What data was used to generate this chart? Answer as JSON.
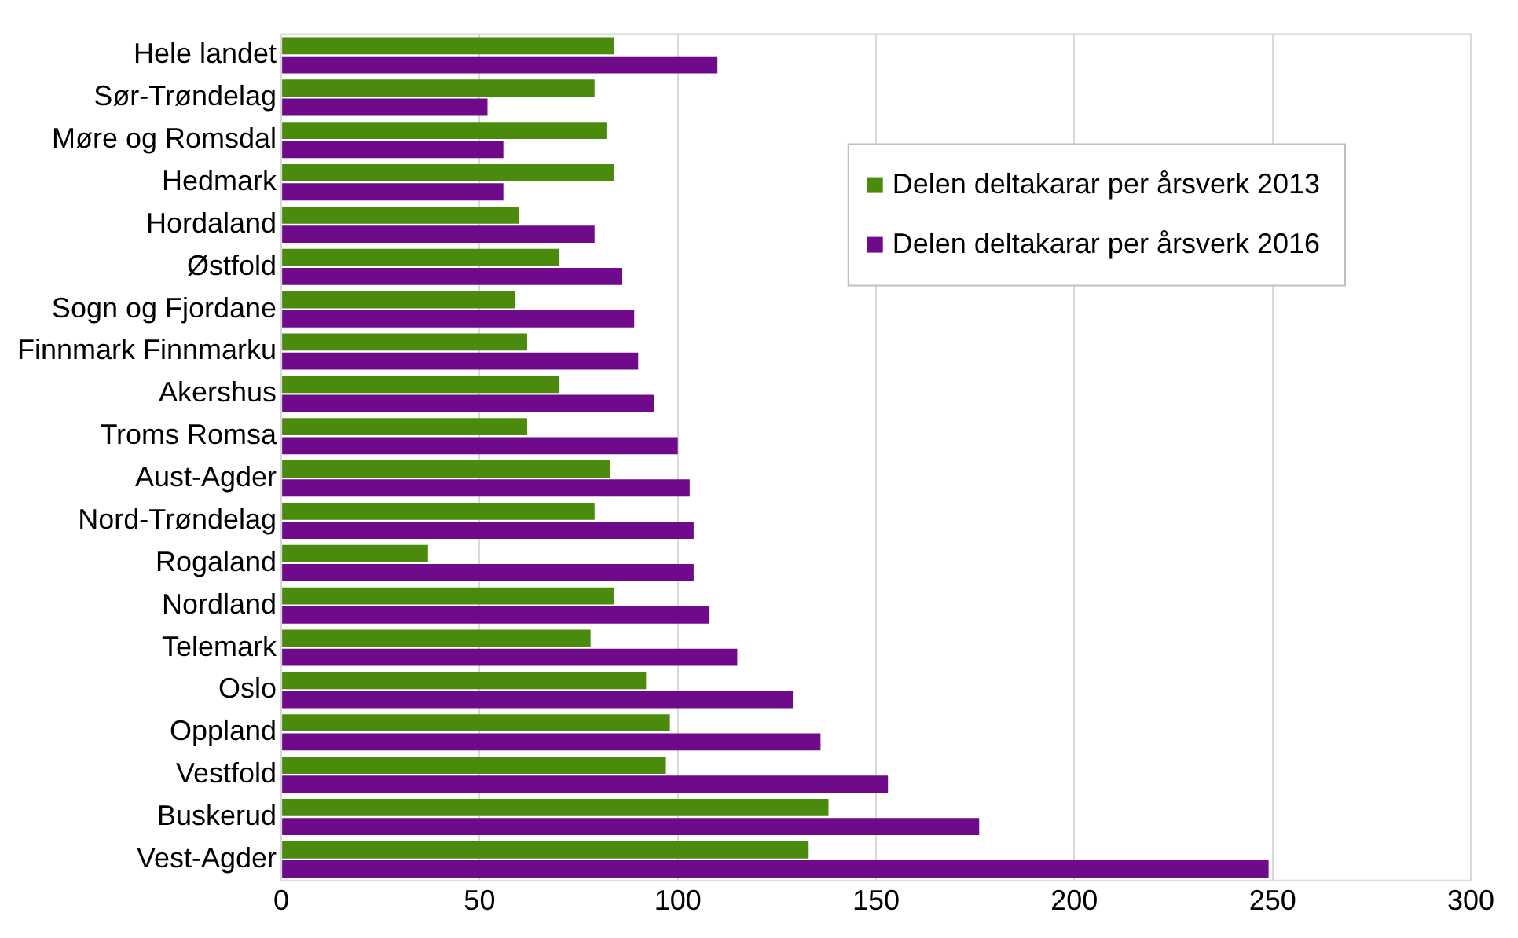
{
  "chart_data": {
    "type": "bar",
    "orientation": "horizontal",
    "categories": [
      "Hele landet",
      "Sør-Trøndelag",
      "Møre og Romsdal",
      "Hedmark",
      "Hordaland",
      "Østfold",
      "Sogn og Fjordane",
      "Finnmark Finnmarku",
      "Akershus",
      "Troms Romsa",
      "Aust-Agder",
      "Nord-Trøndelag",
      "Rogaland",
      "Nordland",
      "Telemark",
      "Oslo",
      "Oppland",
      "Vestfold",
      "Buskerud",
      "Vest-Agder"
    ],
    "series": [
      {
        "name": "Delen deltakarar per årsverk 2013",
        "color": "#4a8a0c",
        "values": [
          84,
          79,
          82,
          84,
          60,
          70,
          59,
          62,
          70,
          62,
          83,
          79,
          37,
          84,
          78,
          92,
          98,
          97,
          138,
          133
        ]
      },
      {
        "name": "Delen deltakarar per årsverk 2016",
        "color": "#6f0a8a",
        "values": [
          110,
          52,
          56,
          56,
          79,
          86,
          89,
          90,
          94,
          100,
          103,
          104,
          104,
          108,
          115,
          129,
          136,
          153,
          176,
          249
        ]
      }
    ],
    "xlim": [
      0,
      300
    ],
    "xticks": [
      0,
      50,
      100,
      150,
      200,
      250,
      300
    ],
    "grid": "x",
    "legend": "top right"
  }
}
